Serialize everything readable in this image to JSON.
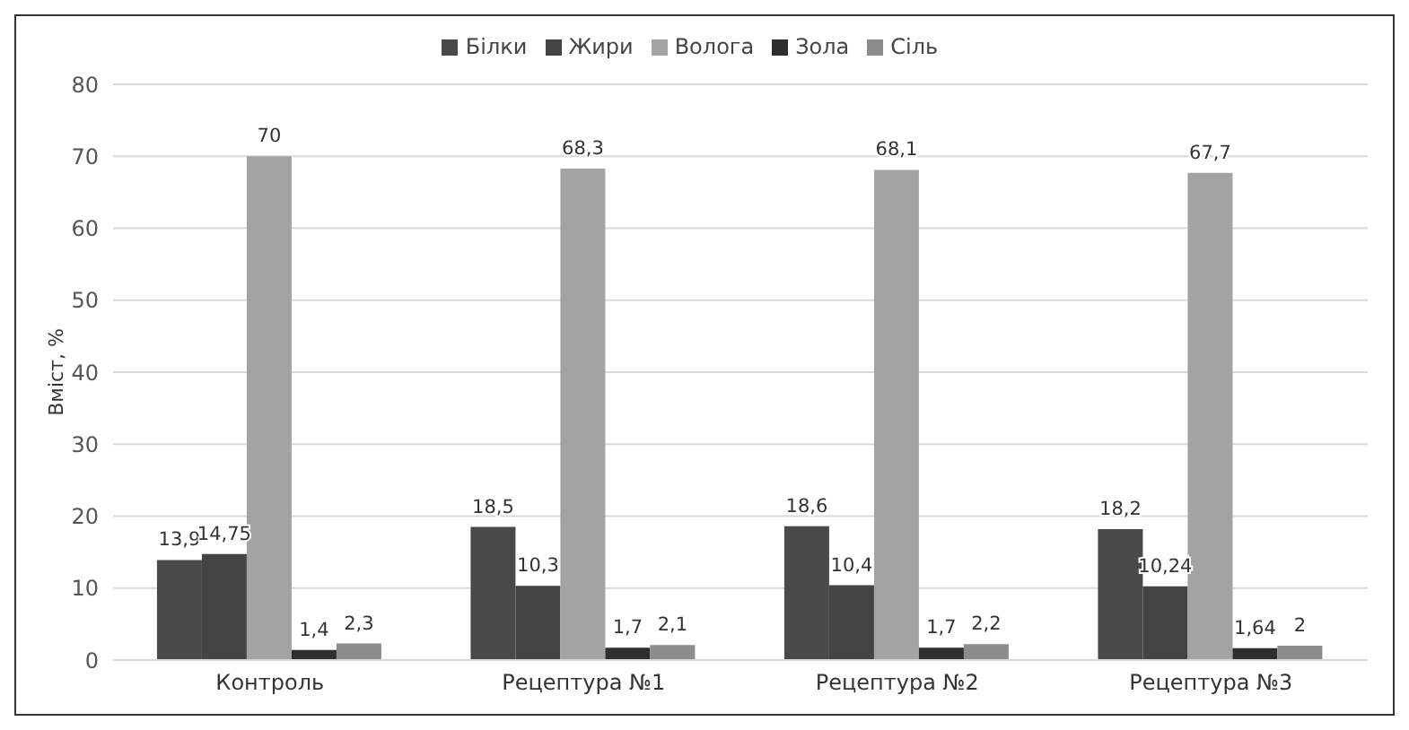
{
  "chart_data": {
    "type": "bar",
    "ylabel": "Вміст, %",
    "categories": [
      "Контроль",
      "Рецептура №1",
      "Рецептура №2",
      "Рецептура №3"
    ],
    "series": [
      {
        "name": "Білки",
        "color": "#4a4a4a",
        "values": [
          13.9,
          18.5,
          18.6,
          18.2
        ],
        "value_labels": [
          "13,9",
          "18,5",
          "18,6",
          "18,2"
        ]
      },
      {
        "name": "Жири",
        "color": "#444444",
        "values": [
          14.75,
          10.3,
          10.4,
          10.24
        ],
        "value_labels": [
          "14,75",
          "10,3",
          "10,4",
          "10,24"
        ]
      },
      {
        "name": "Волога",
        "color": "#a3a3a3",
        "values": [
          70,
          68.3,
          68.1,
          67.7
        ],
        "value_labels": [
          "70",
          "68,3",
          "68,1",
          "67,7"
        ]
      },
      {
        "name": "Зола",
        "color": "#2e2e2e",
        "values": [
          1.4,
          1.7,
          1.7,
          1.64
        ],
        "value_labels": [
          "1,4",
          "1,7",
          "1,7",
          "1,64"
        ]
      },
      {
        "name": "Сіль",
        "color": "#8c8c8c",
        "values": [
          2.3,
          2.1,
          2.2,
          2
        ],
        "value_labels": [
          "2,3",
          "2,1",
          "2,2",
          "2"
        ]
      }
    ],
    "ylim": [
      0,
      80
    ],
    "yticks": [
      0,
      10,
      20,
      30,
      40,
      50,
      60,
      70,
      80
    ],
    "grid": "y",
    "legend": "top"
  }
}
